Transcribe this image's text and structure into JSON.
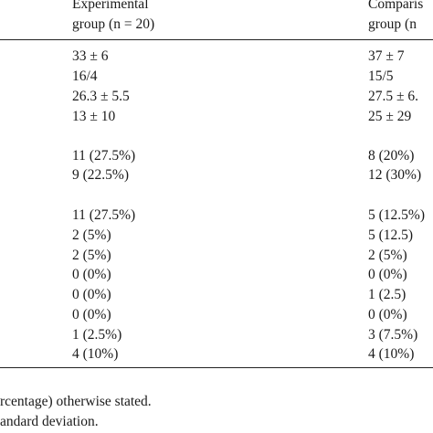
{
  "header": {
    "col_exp_line1": "Experimental",
    "col_exp_line2": "group (n = 20)",
    "col_comp_line1": "Comparis",
    "col_comp_line2": "group (n"
  },
  "rows": [
    {
      "exp": "33 ± 6",
      "comp": "37 ± 7"
    },
    {
      "exp": "16/4",
      "comp": "15/5"
    },
    {
      "exp": "26.3 ± 5.5",
      "comp": "27.5 ± 6."
    },
    {
      "exp": "13 ± 10",
      "comp": "25 ± 29"
    },
    {
      "exp": "11 (27.5%)",
      "comp": "8 (20%)"
    },
    {
      "exp": "9 (22.5%)",
      "comp": "12 (30%)"
    },
    {
      "exp": "11 (27.5%)",
      "comp": "5 (12.5%)"
    },
    {
      "exp": "2 (5%)",
      "comp": "5 (12.5)"
    },
    {
      "exp": "2 (5%)",
      "comp": "2 (5%)"
    },
    {
      "exp": "0 (0%)",
      "comp": "0 (0%)"
    },
    {
      "exp": "0 (0%)",
      "comp": "1 (2.5)"
    },
    {
      "exp": "0 (0%)",
      "comp": "0 (0%)"
    },
    {
      "exp": "1 (2.5%)",
      "comp": "3 (7.5%)"
    },
    {
      "exp": "4 (10%)",
      "comp": "4 (10%)"
    }
  ],
  "footnotes": {
    "line1": "rcentage) otherwise stated.",
    "line2": "andard deviation."
  }
}
